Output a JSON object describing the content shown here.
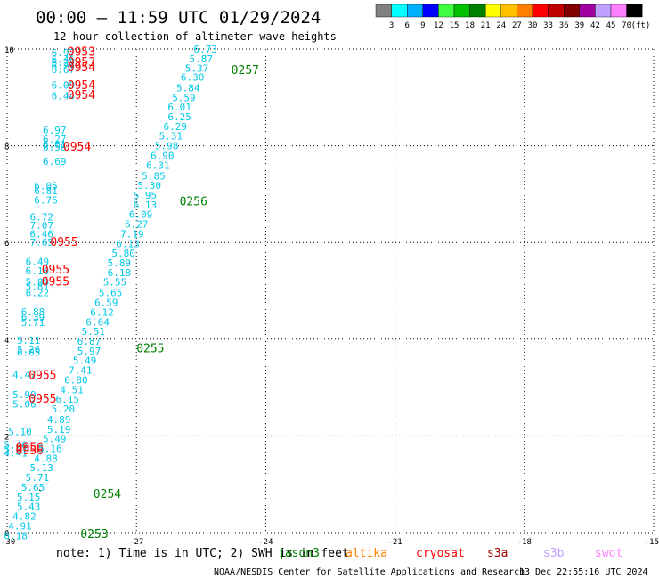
{
  "header": {
    "title": "00:00 – 11:59 UTC 01/29/2024",
    "subtitle": "12 hour collection of altimeter wave heights"
  },
  "colorbar": {
    "colors": [
      "#808080",
      "#00ffff",
      "#00b0ff",
      "#0000ff",
      "#40ff40",
      "#00c000",
      "#008000",
      "#ffff00",
      "#ffc000",
      "#ff8000",
      "#ff0000",
      "#c00000",
      "#800000",
      "#a000a0",
      "#c0a0ff",
      "#ff80ff",
      "#000000"
    ],
    "labels": [
      "3",
      "6",
      "9",
      "12",
      "15",
      "18",
      "21",
      "24",
      "27",
      "30",
      "33",
      "36",
      "39",
      "42",
      "45",
      "70",
      "(ft)"
    ]
  },
  "chart_data": {
    "type": "scatter",
    "title": "00:00 – 11:59 UTC 01/29/2024",
    "subtitle": "12 hour collection of altimeter wave heights",
    "xlim": [
      -30,
      -15
    ],
    "ylim": [
      0,
      10
    ],
    "xticks": [
      "-30",
      "-27",
      "-24",
      "-21",
      "-18",
      "-15"
    ],
    "yticks": [
      "0",
      "2",
      "4",
      "6",
      "8",
      "10"
    ],
    "grid": true,
    "swh_color": "#00c8e8",
    "series": [
      {
        "name": "jason3",
        "color": "#008000",
        "points": [
          {
            "x": -28.7,
            "y": 9.93,
            "v": "6.97"
          },
          {
            "x": -28.7,
            "y": 9.79,
            "v": "6.46"
          },
          {
            "x": -28.7,
            "y": 9.72,
            "v": "6.22"
          },
          {
            "x": -28.7,
            "y": 9.65,
            "v": "6.27"
          },
          {
            "x": -28.7,
            "y": 9.58,
            "v": "6.67"
          },
          {
            "x": -28.7,
            "y": 9.25,
            "v": "6.09"
          },
          {
            "x": -28.7,
            "y": 9.03,
            "v": "6.44"
          },
          {
            "x": -28.9,
            "y": 8.32,
            "v": "6.97"
          },
          {
            "x": -28.9,
            "y": 8.14,
            "v": "6.27"
          },
          {
            "x": -28.9,
            "y": 8.03,
            "v": "6.61"
          },
          {
            "x": -28.9,
            "y": 7.97,
            "v": "6.56"
          },
          {
            "x": -28.9,
            "y": 7.68,
            "v": "6.69"
          },
          {
            "x": -29.1,
            "y": 7.17,
            "v": "6.05"
          },
          {
            "x": -29.1,
            "y": 7.07,
            "v": "6.81"
          },
          {
            "x": -29.1,
            "y": 6.88,
            "v": "6.76"
          },
          {
            "x": -29.2,
            "y": 6.53,
            "v": "6.72"
          },
          {
            "x": -29.2,
            "y": 6.35,
            "v": "7.07"
          },
          {
            "x": -29.2,
            "y": 6.18,
            "v": "6.46"
          },
          {
            "x": -29.2,
            "y": 6.0,
            "v": "7.65"
          },
          {
            "x": -29.3,
            "y": 5.61,
            "v": "6.49"
          },
          {
            "x": -29.3,
            "y": 5.41,
            "v": "6.10"
          },
          {
            "x": -29.3,
            "y": 5.18,
            "v": "5.89"
          },
          {
            "x": -29.3,
            "y": 5.09,
            "v": "5.81"
          },
          {
            "x": -29.3,
            "y": 4.96,
            "v": "6.22"
          },
          {
            "x": -29.4,
            "y": 4.57,
            "v": "6.88"
          },
          {
            "x": -29.4,
            "y": 4.46,
            "v": "6.39"
          },
          {
            "x": -29.4,
            "y": 4.35,
            "v": "5.71"
          },
          {
            "x": -29.5,
            "y": 3.98,
            "v": "5.11"
          },
          {
            "x": -29.5,
            "y": 3.79,
            "v": "5.26"
          },
          {
            "x": -29.5,
            "y": 3.73,
            "v": "6.05"
          },
          {
            "x": -29.6,
            "y": 3.27,
            "v": "4.47"
          },
          {
            "x": -29.6,
            "y": 2.85,
            "v": "5.99"
          },
          {
            "x": -29.6,
            "y": 2.66,
            "v": "5.06"
          },
          {
            "x": -29.7,
            "y": 2.09,
            "v": "5.10"
          },
          {
            "x": -29.8,
            "y": 1.81,
            "v": "5.46"
          },
          {
            "x": -29.8,
            "y": 1.72,
            "v": "5.47"
          },
          {
            "x": -29.8,
            "y": 1.65,
            "v": "4.41"
          }
        ],
        "passes": [
          {
            "x": -28.6,
            "y": 9.95,
            "label": "0953"
          },
          {
            "x": -28.6,
            "y": 9.74,
            "label": "0953"
          },
          {
            "x": -28.6,
            "y": 9.63,
            "label": "0954"
          },
          {
            "x": -28.6,
            "y": 9.26,
            "label": "0954"
          },
          {
            "x": -28.6,
            "y": 9.06,
            "label": "0954"
          },
          {
            "x": -28.7,
            "y": 7.99,
            "label": "0954"
          },
          {
            "x": -29.0,
            "y": 6.02,
            "label": "0955"
          },
          {
            "x": -29.2,
            "y": 5.45,
            "label": "0955"
          },
          {
            "x": -29.2,
            "y": 5.2,
            "label": "0955"
          },
          {
            "x": -29.5,
            "y": 3.27,
            "label": "0955"
          },
          {
            "x": -29.5,
            "y": 2.78,
            "label": "0955"
          },
          {
            "x": -29.8,
            "y": 1.78,
            "label": "0956"
          },
          {
            "x": -29.8,
            "y": 1.71,
            "label": "0956"
          }
        ]
      },
      {
        "name": "jason3",
        "color": "#008000",
        "points": [
          {
            "x": -25.4,
            "y": 10.0,
            "v": "6.73"
          },
          {
            "x": -25.5,
            "y": 9.8,
            "v": "5.87"
          },
          {
            "x": -25.6,
            "y": 9.6,
            "v": "5.37"
          },
          {
            "x": -25.7,
            "y": 9.42,
            "v": "6.30"
          },
          {
            "x": -25.8,
            "y": 9.2,
            "v": "5.84"
          },
          {
            "x": -25.9,
            "y": 9.0,
            "v": "5.59"
          },
          {
            "x": -26.0,
            "y": 8.8,
            "v": "6.01"
          },
          {
            "x": -26.0,
            "y": 8.6,
            "v": "6.25"
          },
          {
            "x": -26.1,
            "y": 8.4,
            "v": "6.29"
          },
          {
            "x": -26.2,
            "y": 8.2,
            "v": "5.31"
          },
          {
            "x": -26.3,
            "y": 8.0,
            "v": "5.98"
          },
          {
            "x": -26.4,
            "y": 7.8,
            "v": "6.90"
          },
          {
            "x": -26.5,
            "y": 7.6,
            "v": "6.31"
          },
          {
            "x": -26.6,
            "y": 7.38,
            "v": "5.85"
          },
          {
            "x": -26.7,
            "y": 7.18,
            "v": "5.30"
          },
          {
            "x": -26.8,
            "y": 6.98,
            "v": "5.95"
          },
          {
            "x": -26.8,
            "y": 6.78,
            "v": "6.13"
          },
          {
            "x": -26.9,
            "y": 6.58,
            "v": "6.09"
          },
          {
            "x": -27.0,
            "y": 6.38,
            "v": "6.27"
          },
          {
            "x": -27.1,
            "y": 6.18,
            "v": "7.19"
          },
          {
            "x": -27.2,
            "y": 5.98,
            "v": "6.13"
          },
          {
            "x": -27.3,
            "y": 5.78,
            "v": "5.80"
          },
          {
            "x": -27.4,
            "y": 5.58,
            "v": "5.89"
          },
          {
            "x": -27.4,
            "y": 5.38,
            "v": "6.18"
          },
          {
            "x": -27.5,
            "y": 5.18,
            "v": "5.55"
          },
          {
            "x": -27.6,
            "y": 4.96,
            "v": "5.65"
          },
          {
            "x": -27.7,
            "y": 4.76,
            "v": "6.59"
          },
          {
            "x": -27.8,
            "y": 4.56,
            "v": "6.12"
          },
          {
            "x": -27.9,
            "y": 4.36,
            "v": "6.64"
          },
          {
            "x": -28.0,
            "y": 4.16,
            "v": "5.51"
          },
          {
            "x": -28.1,
            "y": 3.96,
            "v": "6.87"
          },
          {
            "x": -28.1,
            "y": 3.76,
            "v": "5.97"
          },
          {
            "x": -28.2,
            "y": 3.56,
            "v": "5.49"
          },
          {
            "x": -28.3,
            "y": 3.36,
            "v": "7.41"
          },
          {
            "x": -28.4,
            "y": 3.16,
            "v": "6.80"
          },
          {
            "x": -28.5,
            "y": 2.96,
            "v": "4.51"
          },
          {
            "x": -28.6,
            "y": 2.76,
            "v": "6.15"
          },
          {
            "x": -28.7,
            "y": 2.56,
            "v": "5.20"
          },
          {
            "x": -28.8,
            "y": 2.34,
            "v": "4.89"
          },
          {
            "x": -28.8,
            "y": 2.14,
            "v": "5.19"
          },
          {
            "x": -28.9,
            "y": 1.94,
            "v": "5.49"
          },
          {
            "x": -29.0,
            "y": 1.74,
            "v": "5.16"
          },
          {
            "x": -29.1,
            "y": 1.54,
            "v": "4.88"
          },
          {
            "x": -29.2,
            "y": 1.34,
            "v": "5.13"
          },
          {
            "x": -29.3,
            "y": 1.14,
            "v": "5.71"
          },
          {
            "x": -29.4,
            "y": 0.94,
            "v": "5.65"
          },
          {
            "x": -29.5,
            "y": 0.74,
            "v": "5.15"
          },
          {
            "x": -29.5,
            "y": 0.54,
            "v": "5.43"
          },
          {
            "x": -29.6,
            "y": 0.34,
            "v": "4.82"
          },
          {
            "x": -29.7,
            "y": 0.14,
            "v": "4.91"
          },
          {
            "x": -29.8,
            "y": -0.06,
            "v": "6.18"
          }
        ],
        "passes": [
          {
            "x": -24.8,
            "y": 9.58,
            "label": "0257"
          },
          {
            "x": -26.0,
            "y": 6.86,
            "label": "0256"
          },
          {
            "x": -27.0,
            "y": 3.82,
            "label": "0255"
          },
          {
            "x": -28.0,
            "y": 0.81,
            "label": "0254"
          },
          {
            "x": -28.3,
            "y": -0.02,
            "label": "0253"
          }
        ]
      }
    ],
    "stray_mark": {
      "x": -29.3,
      "y": 0.81,
      "label": "`"
    }
  },
  "legend": {
    "note": "note:  1) Time is in UTC; 2) SWH is in feet",
    "satellites": [
      {
        "name": "jason3",
        "color": "#008000"
      },
      {
        "name": "altika",
        "color": "#ff8000"
      },
      {
        "name": "cryosat",
        "color": "#ff0000"
      },
      {
        "name": "s3a",
        "color": "#a00000"
      },
      {
        "name": "s3b",
        "color": "#c0a0ff"
      },
      {
        "name": "swot",
        "color": "#ff80ff"
      }
    ]
  },
  "footer": {
    "credit": "NOAA/NESDIS Center for Satellite Applications and Research",
    "timestamp": "13 Dec 22:55:16 UTC 2024"
  }
}
